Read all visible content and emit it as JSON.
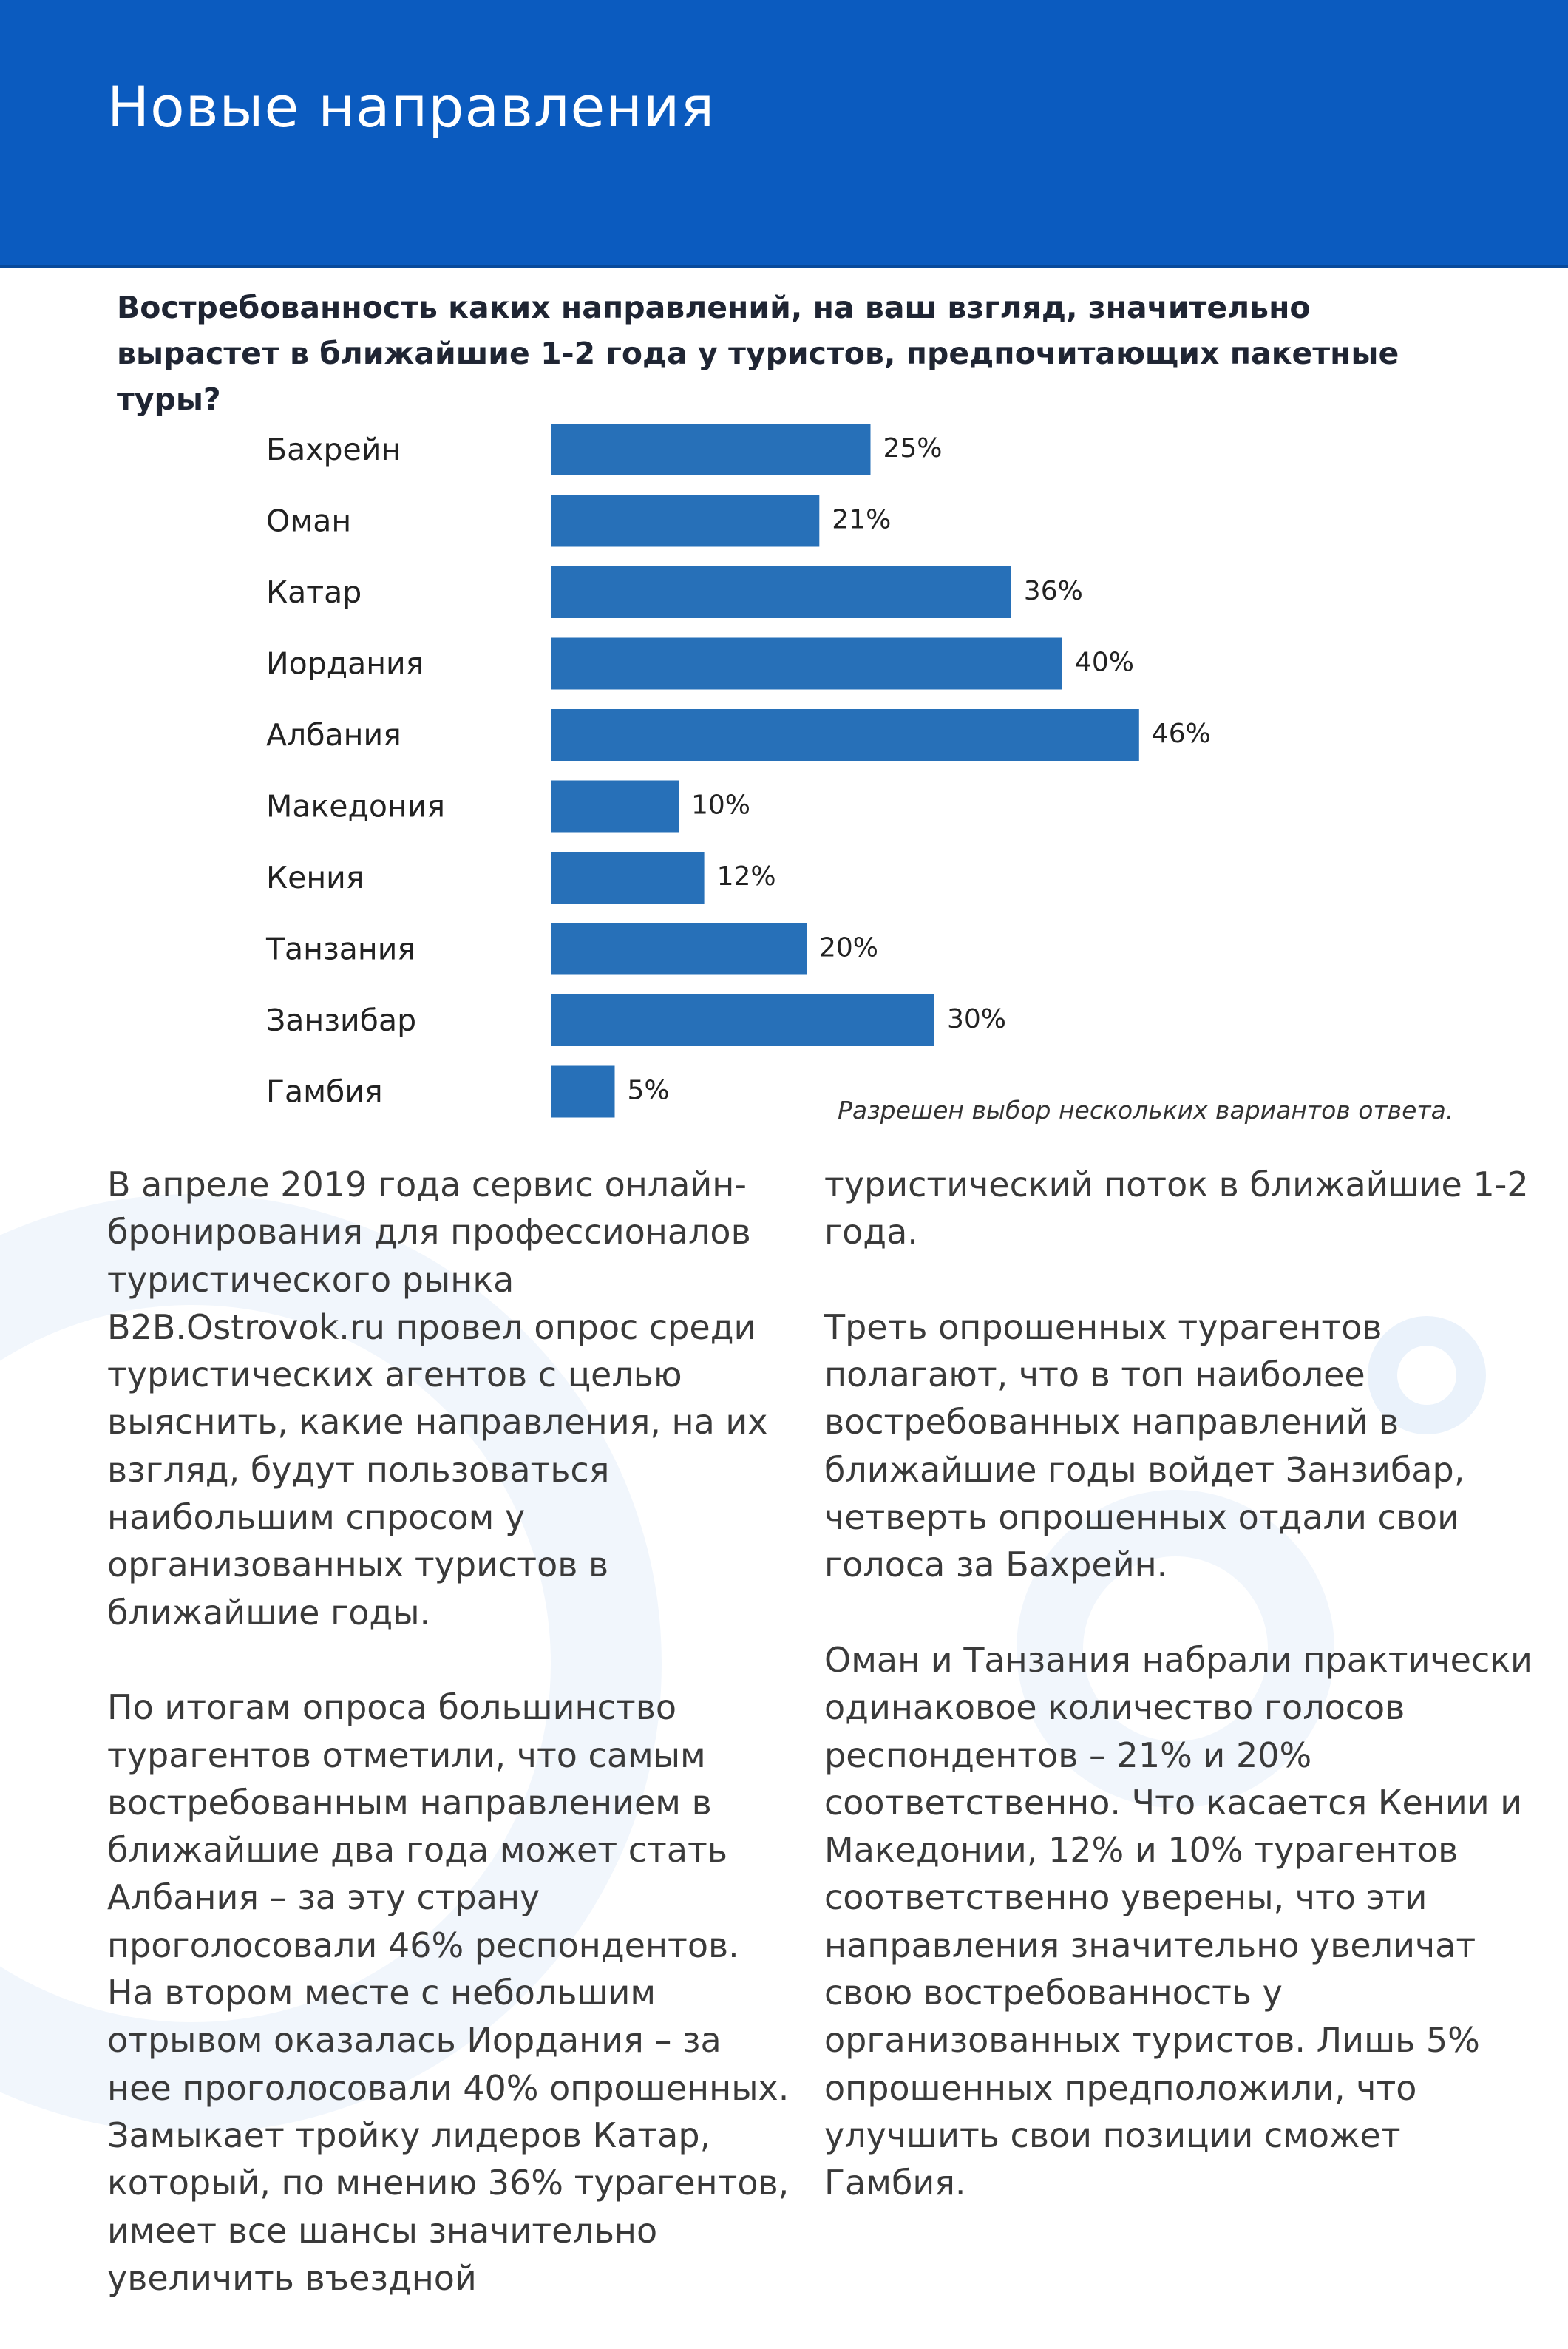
{
  "header": {
    "title": "Новые направления"
  },
  "question": "Востребованность каких направлений, на ваш взгляд, значительно вырастет в ближайшие 1-2 года у туристов, предпочитающих пакетные туры?",
  "chart_data": {
    "type": "bar",
    "orientation": "horizontal",
    "categories": [
      "Бахрейн",
      "Оман",
      "Катар",
      "Иордания",
      "Албания",
      "Македония",
      "Кения",
      "Танзания",
      "Занзибар",
      "Гамбия"
    ],
    "values": [
      25,
      21,
      36,
      40,
      46,
      10,
      12,
      20,
      30,
      5
    ],
    "value_labels": [
      "25%",
      "21%",
      "36%",
      "40%",
      "46%",
      "10%",
      "12%",
      "20%",
      "30%",
      "5%"
    ],
    "unit": "%",
    "title": "",
    "xlabel": "",
    "ylabel": "",
    "xlim": [
      0,
      50
    ],
    "grid": false,
    "bar_color": "#2770b8"
  },
  "note": "Разрешен выбор нескольких вариантов ответа.",
  "left_column": {
    "p1": "В апреле 2019 года сервис онлайн-бронирования для профессионалов туристического рынка B2B.Ostrovok.ru провел опрос среди туристических агентов с целью выяснить, какие направления, на их взгляд, будут пользоваться наибольшим спросом у организованных туристов в ближайшие годы.",
    "p2": "По итогам опроса большинство турагентов отметили, что самым востребованным направлением в ближайшие два года может стать Албания – за эту страну проголосовали 46% респондентов. На втором месте с небольшим отрывом оказалась Иордания – за нее проголосовали 40% опрошенных. Замыкает тройку лидеров Катар, который, по мнению 36% турагентов, имеет все шансы значительно увеличить въездной"
  },
  "right_column": {
    "p1": "туристический поток в ближайшие 1-2 года.",
    "p2": "Треть опрошенных турагентов полагают, что в топ наиболее востребованных направлений в ближайшие годы войдет Занзибар, четверть опрошенных отдали свои голоса за Бахрейн.",
    "p3": "Оман и Танзания набрали практически одинаковое количество голосов респондентов – 21% и 20% соответственно. Что касается Кении и Македонии, 12% и 10% турагентов соответственно уверены, что эти направления значительно увеличат свою востребованность у организованных туристов. Лишь 5% опрошенных предположили, что улучшить свои позиции сможет Гамбия."
  }
}
